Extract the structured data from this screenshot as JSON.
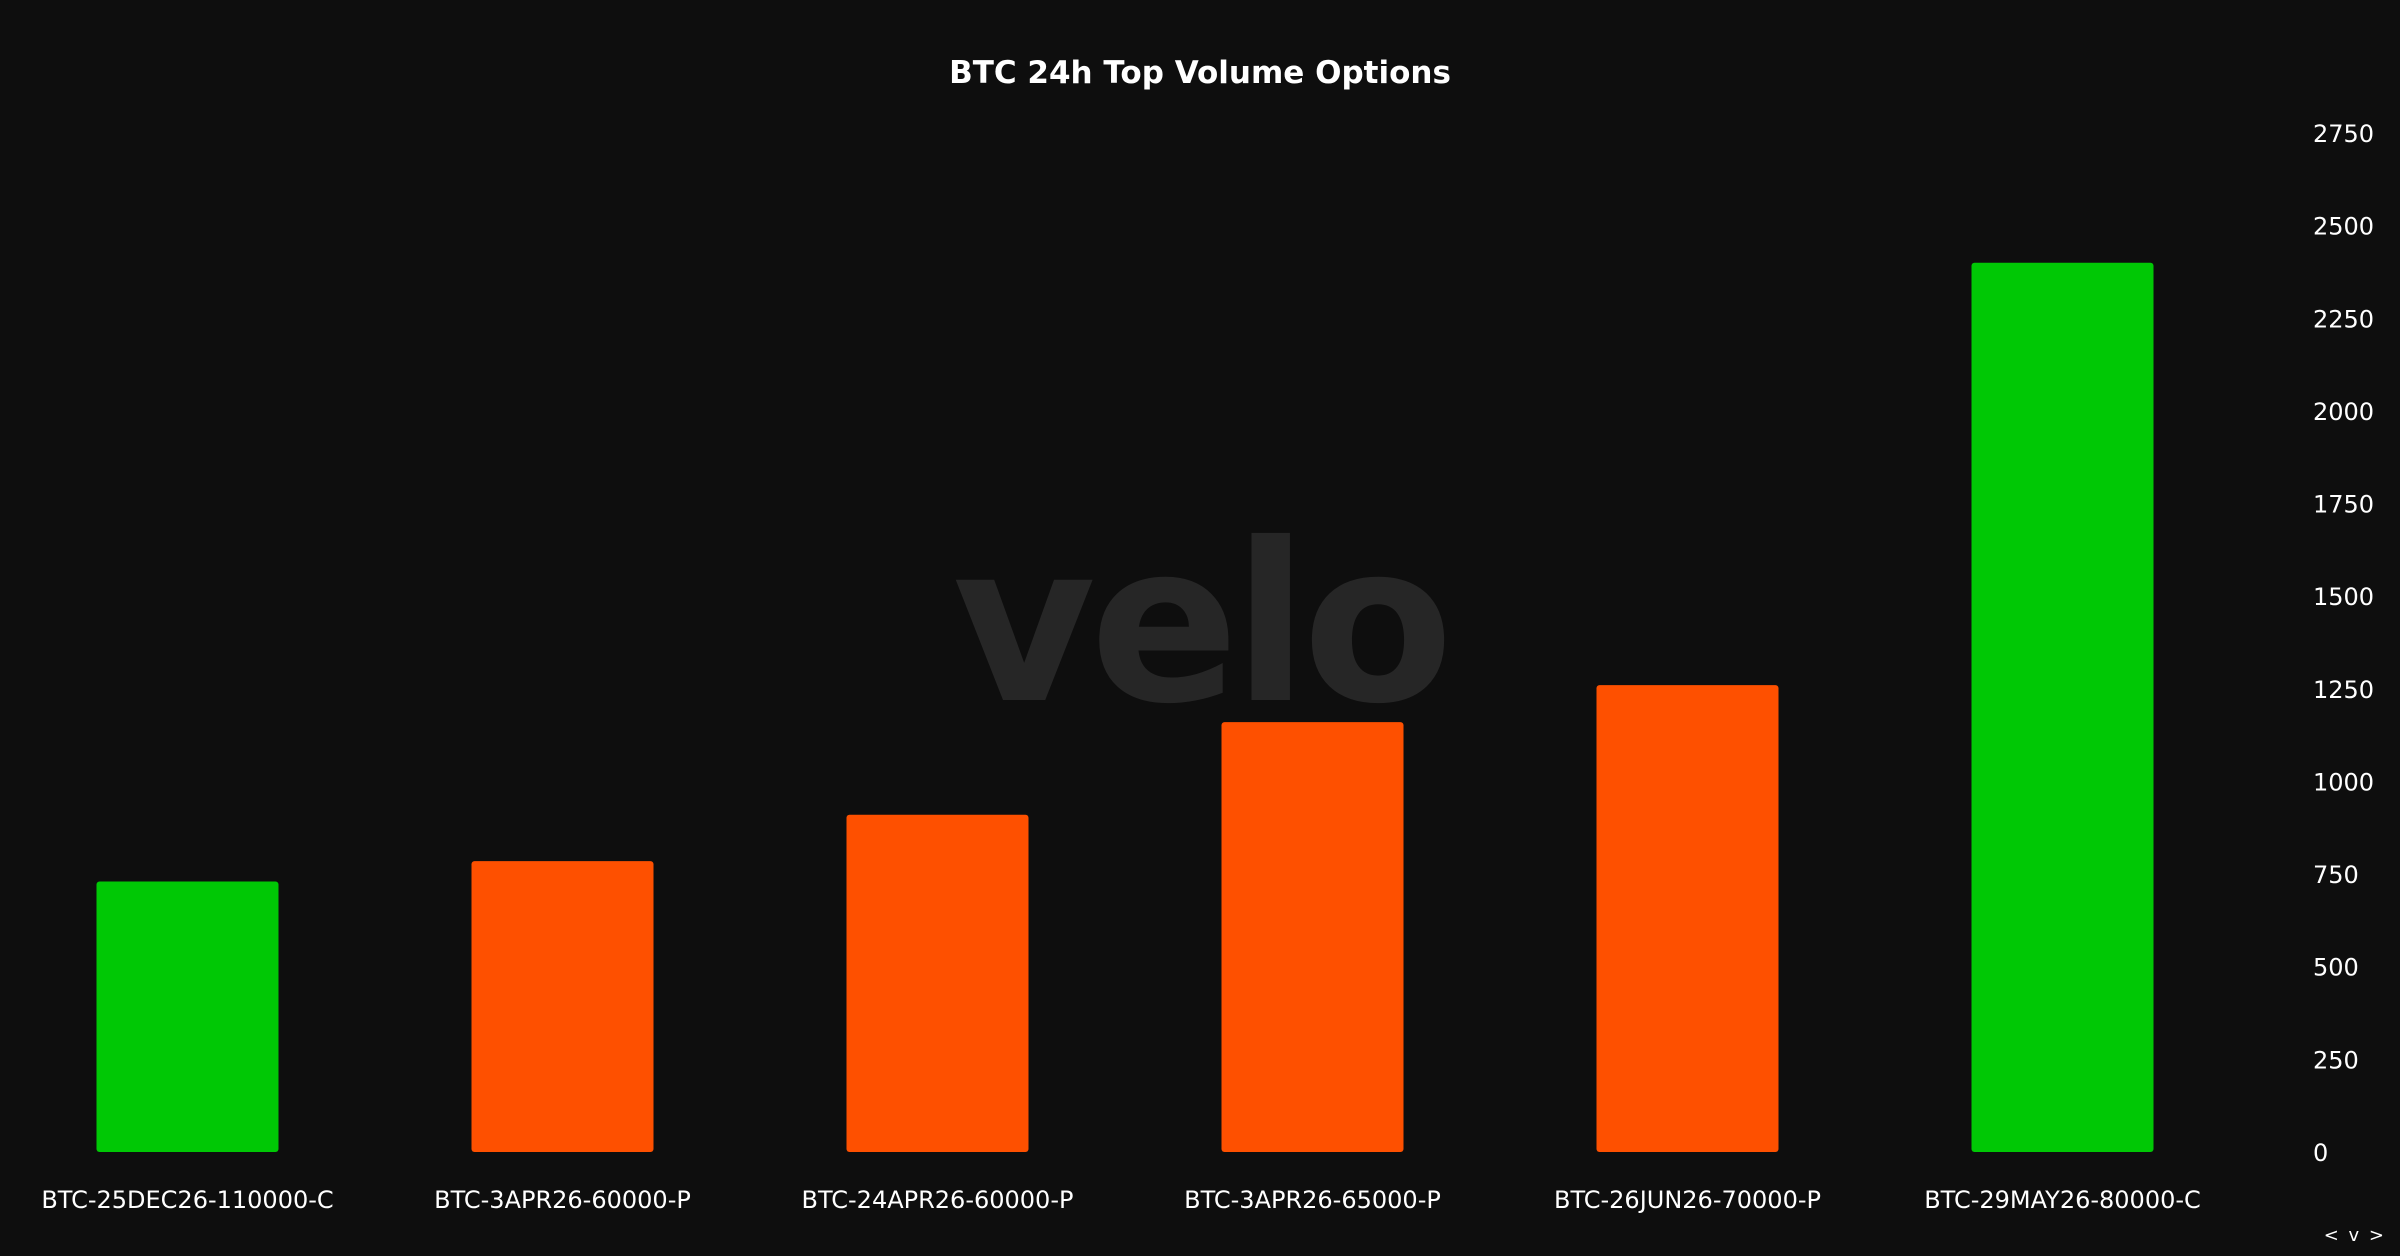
{
  "colors": {
    "background": "#0e0e0e",
    "call": "#00c805",
    "put": "#fe5000",
    "text": "#ffffff",
    "watermark": "#262626"
  },
  "watermark": "velo",
  "nav": {
    "prev": "<",
    "next": ">",
    "down": "v"
  },
  "chart_data": {
    "type": "bar",
    "title": "BTC 24h Top Volume Options",
    "xlabel": "",
    "ylabel": "",
    "ylim": [
      0,
      2750
    ],
    "yticks": [
      0,
      250,
      500,
      750,
      1000,
      1250,
      1500,
      1750,
      2000,
      2250,
      2500,
      2750
    ],
    "y_axis_position": "right",
    "grid": false,
    "legend": "none",
    "categories": [
      "BTC-25DEC26-110000-C",
      "BTC-3APR26-60000-P",
      "BTC-24APR26-60000-P",
      "BTC-3APR26-65000-P",
      "BTC-26JUN26-70000-P",
      "BTC-29MAY26-80000-C"
    ],
    "values": [
      730,
      785,
      910,
      1160,
      1260,
      2400
    ],
    "bar_colors": [
      "#00c805",
      "#fe5000",
      "#fe5000",
      "#fe5000",
      "#fe5000",
      "#00c805"
    ]
  }
}
